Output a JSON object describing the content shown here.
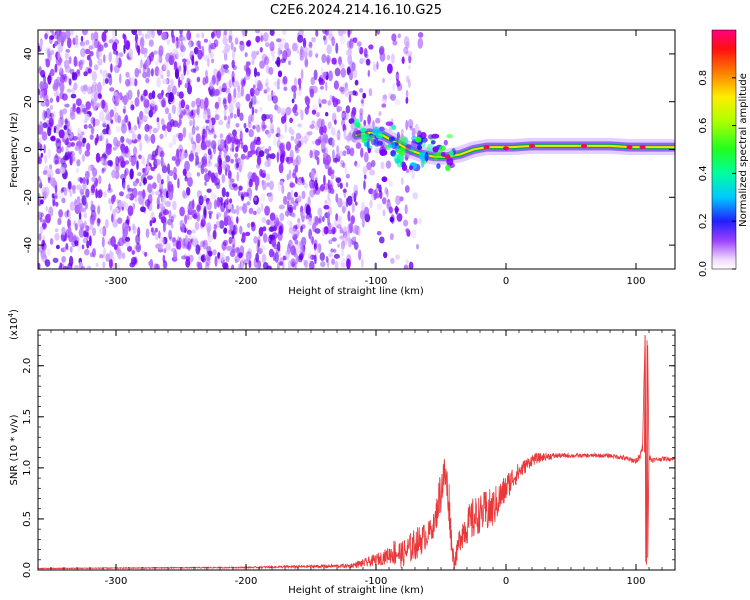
{
  "title": "C2E6.2024.214.16.10.G25",
  "colors": {
    "snr_line": "#e8383a",
    "spectrogram_low": "#7b00ff",
    "spectrogram_high": "#ff0060",
    "ridge": "#00aa40"
  },
  "chart_data": [
    {
      "type": "heatmap",
      "name": "spectrogram",
      "xlabel": "Height of straight line (km)",
      "ylabel": "Frequency (Hz)",
      "xlim": [
        -360,
        130
      ],
      "ylim": [
        -50,
        50
      ],
      "xticks": [
        -300,
        -200,
        -100,
        0,
        100
      ],
      "xtick_labels": [
        "-300",
        "-200",
        "-100",
        "0",
        "100"
      ],
      "yticks": [
        -40,
        -20,
        0,
        20,
        40
      ],
      "ytick_labels": [
        "-40",
        "-20",
        "0",
        "20",
        "40"
      ],
      "colorbar": {
        "label": "Normalized spectral amplitude",
        "range": [
          0,
          1
        ],
        "ticks": [
          0.0,
          0.2,
          0.4,
          0.6,
          0.8
        ],
        "tick_labels": [
          "0.0",
          "0.2",
          "0.4",
          "0.6",
          "0.8"
        ]
      },
      "ridge_line": {
        "x": [
          -115,
          -105,
          -95,
          -85,
          -75,
          -65,
          -55,
          -45,
          -35,
          -25,
          -15,
          -5,
          5,
          20,
          40,
          60,
          80,
          95,
          105,
          115,
          130
        ],
        "frequency": [
          6,
          7,
          6,
          3,
          0,
          -2,
          -3,
          -3,
          -2,
          0,
          1,
          1,
          1,
          1.5,
          1.5,
          1.5,
          1.5,
          1,
          1,
          1,
          1
        ]
      },
      "noise_region_end_x": -75,
      "noise_amplitude_range": [
        0.05,
        0.25
      ]
    },
    {
      "type": "line",
      "name": "snr",
      "xlabel": "Height of straight line (km)",
      "ylabel": "SNR (10 * v/v)",
      "y_scale_label": "(x10",
      "y_scale_exponent": "4",
      "y_scale_close": ")",
      "xlim": [
        -360,
        130
      ],
      "ylim": [
        0,
        23500
      ],
      "xticks": [
        -300,
        -200,
        -100,
        0,
        100
      ],
      "xtick_labels": [
        "-300",
        "-200",
        "-100",
        "0",
        "100"
      ],
      "yticks": [
        0,
        5000,
        10000,
        15000,
        20000
      ],
      "ytick_labels": [
        "0.0",
        "0.5",
        "1.0",
        "1.5",
        "2.0"
      ],
      "series": [
        {
          "x": [
            -360,
            -200,
            -120,
            -105,
            -100,
            -95,
            -90,
            -85,
            -80,
            -75,
            -70,
            -65,
            -60,
            -55,
            -50,
            -47,
            -44,
            -42,
            -40,
            -38,
            -35,
            -30,
            -25,
            -20,
            -15,
            -10,
            -5,
            0,
            5,
            10,
            15,
            20,
            30,
            40,
            50,
            60,
            70,
            80,
            90,
            95,
            100,
            103,
            105,
            107,
            108,
            109,
            110,
            112,
            115,
            120,
            130
          ],
          "values": [
            150,
            250,
            400,
            800,
            1000,
            1200,
            1500,
            1800,
            1500,
            2000,
            2500,
            3000,
            3500,
            4500,
            8000,
            9500,
            7000,
            3000,
            800,
            1500,
            3500,
            4300,
            5000,
            5500,
            5700,
            6000,
            7000,
            8000,
            9000,
            9600,
            10200,
            10800,
            11100,
            11200,
            11200,
            11200,
            11200,
            11200,
            11000,
            10800,
            10700,
            11000,
            12000,
            23000,
            500,
            22000,
            11000,
            10800,
            10800,
            10900,
            10900
          ],
          "noise": [
            40,
            60,
            200,
            500,
            600,
            700,
            800,
            1500,
            1300,
            1500,
            1600,
            1500,
            1200,
            1200,
            2500,
            2000,
            2500,
            1500,
            800,
            1000,
            1600,
            1800,
            2200,
            1800,
            2200,
            2000,
            1700,
            1400,
            1200,
            900,
            700,
            600,
            400,
            250,
            200,
            200,
            200,
            200,
            250,
            250,
            300,
            400,
            500,
            0,
            0,
            0,
            500,
            300,
            200,
            200,
            200
          ]
        }
      ]
    }
  ]
}
